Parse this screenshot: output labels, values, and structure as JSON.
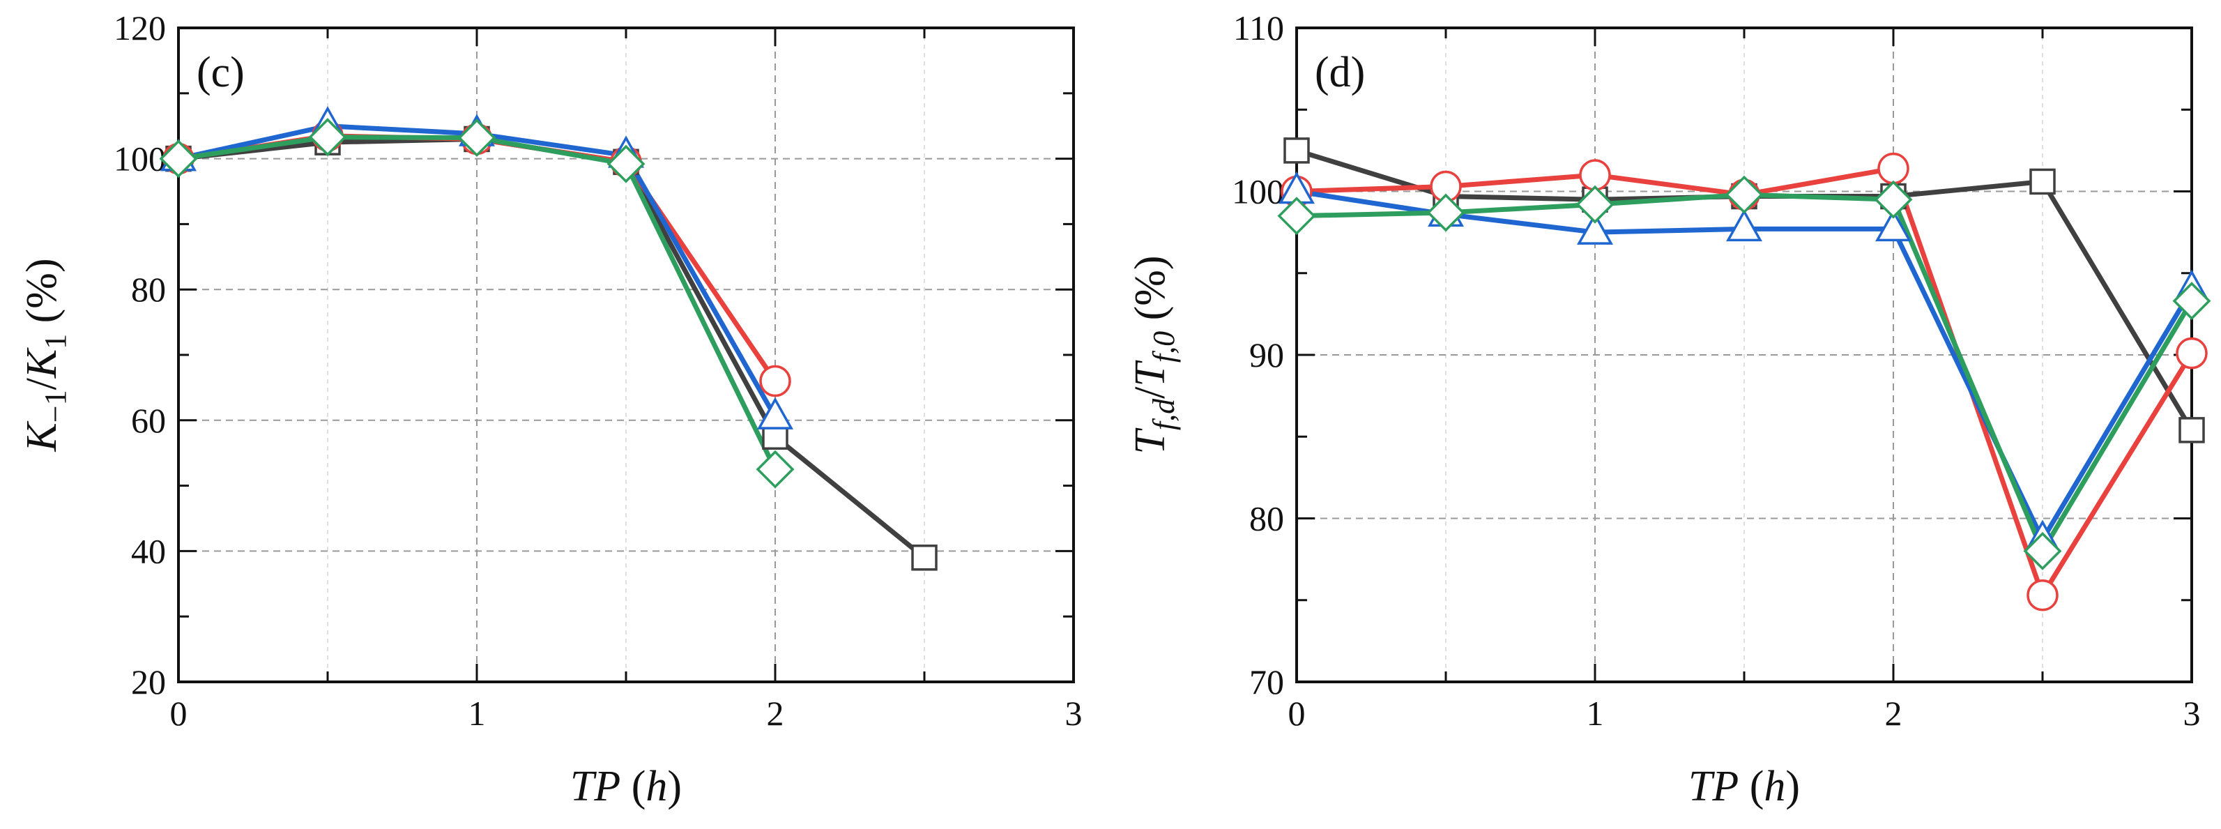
{
  "chart_data": [
    {
      "type": "line",
      "panel_label": "(c)",
      "xlabel": "TP (h)",
      "ylabel": "K_{-1}/K_{1} (%)",
      "xlim": [
        0,
        3
      ],
      "ylim": [
        20,
        120
      ],
      "xticks": [
        0,
        1,
        2,
        3
      ],
      "yticks": [
        20,
        40,
        60,
        80,
        100,
        120
      ],
      "tick_labels_x": [
        "0",
        "1",
        "2",
        "3"
      ],
      "tick_labels_y": [
        "20",
        "40",
        "60",
        "80",
        "100",
        "120"
      ],
      "grid": true,
      "series": [
        {
          "name": "black-square",
          "color": "#404040",
          "marker": "square",
          "x": [
            0,
            0.5,
            1,
            1.5,
            2,
            2.5
          ],
          "values": [
            100,
            102.5,
            103,
            99.5,
            57.5,
            39
          ]
        },
        {
          "name": "red-circle",
          "color": "#e8413e",
          "marker": "circle",
          "x": [
            0,
            0.5,
            1,
            1.5,
            2
          ],
          "values": [
            100,
            103.5,
            103,
            99.5,
            66
          ]
        },
        {
          "name": "blue-triangle",
          "color": "#1f66d1",
          "marker": "triangle",
          "x": [
            0,
            0.5,
            1,
            1.5,
            2
          ],
          "values": [
            100,
            105,
            103.8,
            100.5,
            60.5
          ]
        },
        {
          "name": "green-diamond",
          "color": "#2e9e5e",
          "marker": "diamond",
          "x": [
            0,
            0.5,
            1,
            1.5,
            2
          ],
          "values": [
            100,
            103.3,
            103.2,
            99.2,
            52.5
          ]
        }
      ]
    },
    {
      "type": "line",
      "panel_label": "(d)",
      "xlabel": "TP (h)",
      "ylabel": "T_{f,d}/T_{f,0} (%)",
      "xlim": [
        0,
        3
      ],
      "ylim": [
        70,
        110
      ],
      "xticks": [
        0,
        1,
        2,
        3
      ],
      "yticks": [
        70,
        80,
        90,
        100,
        110
      ],
      "tick_labels_x": [
        "0",
        "1",
        "2",
        "3"
      ],
      "tick_labels_y": [
        "70",
        "80",
        "90",
        "100",
        "110"
      ],
      "grid": true,
      "series": [
        {
          "name": "black-square",
          "color": "#404040",
          "marker": "square",
          "x": [
            0,
            0.5,
            1,
            1.5,
            2,
            2.5,
            3
          ],
          "values": [
            102.5,
            99.7,
            99.5,
            99.7,
            99.7,
            100.6,
            85.4
          ]
        },
        {
          "name": "red-circle",
          "color": "#e8413e",
          "marker": "circle",
          "x": [
            0,
            0.5,
            1,
            1.5,
            2,
            2.5,
            3
          ],
          "values": [
            100,
            100.3,
            101,
            99.8,
            101.4,
            75.3,
            90.1
          ]
        },
        {
          "name": "blue-triangle",
          "color": "#1f66d1",
          "marker": "triangle",
          "x": [
            0,
            0.5,
            1,
            1.5,
            2,
            2.5,
            3
          ],
          "values": [
            100,
            98.6,
            97.5,
            97.7,
            97.7,
            78.7,
            94
          ]
        },
        {
          "name": "green-diamond",
          "color": "#2e9e5e",
          "marker": "diamond",
          "x": [
            0,
            0.5,
            1,
            1.5,
            2,
            2.5,
            3
          ],
          "values": [
            98.5,
            98.7,
            99.2,
            99.8,
            99.5,
            78,
            93.3
          ]
        }
      ]
    }
  ]
}
